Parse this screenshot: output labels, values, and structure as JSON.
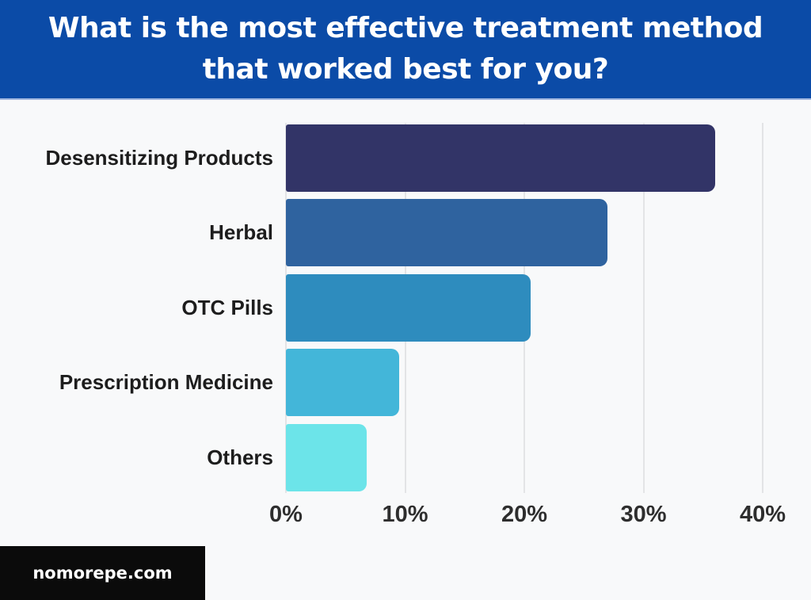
{
  "title": {
    "line1": "What is the most effective treatment method",
    "line2": "that worked best for you?"
  },
  "footer": {
    "site": "nomorepe.com"
  },
  "colors": {
    "banner_background": "#0b4ba7",
    "banner_text": "#ffffff",
    "page_background": "#f8f9fa",
    "gridline": "#e3e4e6",
    "footer_background": "#0b0b0b",
    "footer_text": "#ffffff",
    "label_text": "#1d1d1d",
    "tick_text": "#2e2e2e"
  },
  "chart_data": {
    "type": "bar",
    "orientation": "horizontal",
    "title": "What is the most effective treatment method that worked best for you?",
    "categories": [
      "Desensitizing Products",
      "Herbal",
      "OTC Pills",
      "Prescription Medicine",
      "Others"
    ],
    "values": [
      36,
      27,
      20.5,
      9.5,
      6.8
    ],
    "unit": "%",
    "bar_colors": [
      "#323467",
      "#2f639f",
      "#2e8cbe",
      "#43b6d9",
      "#6ce4e9"
    ],
    "xlabel": "",
    "ylabel": "",
    "x_ticks": [
      "0%",
      "10%",
      "20%",
      "30%",
      "40%"
    ],
    "xlim": [
      0,
      40
    ],
    "grid": "vertical",
    "legend": "none"
  }
}
